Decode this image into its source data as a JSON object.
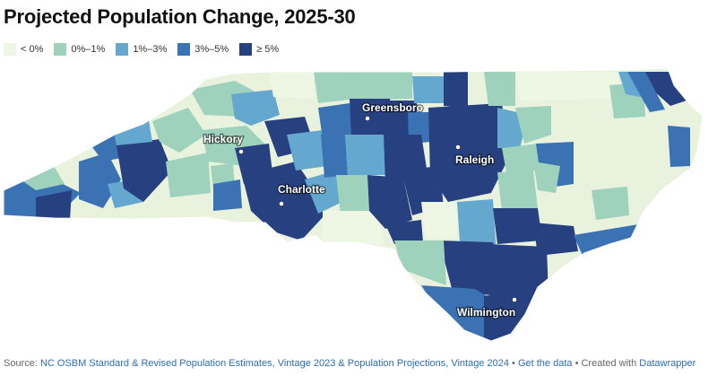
{
  "title": "Projected Population Change, 2025-30",
  "legend": [
    {
      "label": "< 0%",
      "color": "#eef6e4"
    },
    {
      "label": "0%–1%",
      "color": "#9ed2bd"
    },
    {
      "label": "1%–3%",
      "color": "#64a8cf"
    },
    {
      "label": "3%–5%",
      "color": "#3a72b4"
    },
    {
      "label": "≥ 5%",
      "color": "#27407f"
    }
  ],
  "cities": [
    {
      "name": "Greensboro"
    },
    {
      "name": "Hickory"
    },
    {
      "name": "Raleigh"
    },
    {
      "name": "Charlotte"
    },
    {
      "name": "Wilmington"
    }
  ],
  "footer": {
    "prefix": "Source: ",
    "source": "NC OSBM Standard & Revised Population Estimates, Vintage 2023 & Population Projections, Vintage 2024",
    "sep1": " • ",
    "get_data": "Get the data",
    "sep2": " • Created with ",
    "tool": "Datawrapper"
  }
}
